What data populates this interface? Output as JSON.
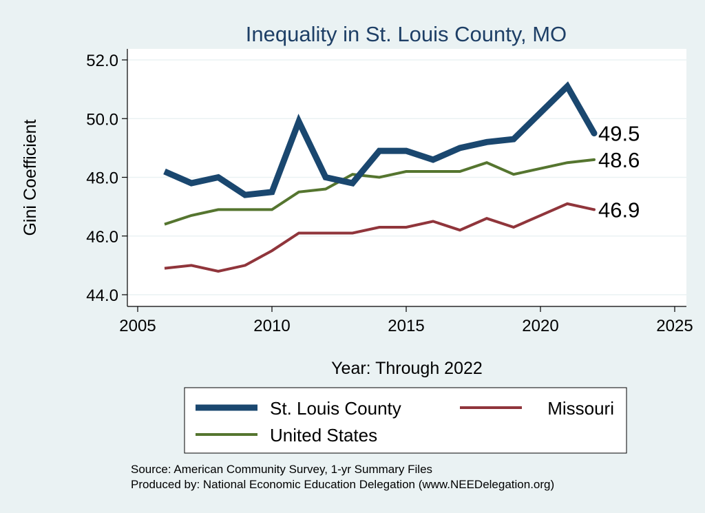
{
  "chart_data": {
    "type": "line",
    "title": "Inequality in St. Louis County, MO",
    "xlabel": "Year: Through 2022",
    "ylabel": "Gini Coefficient",
    "xlim": [
      2005,
      2025
    ],
    "ylim": [
      44.0,
      52.0
    ],
    "x_ticks": [
      "2005",
      "2010",
      "2015",
      "2020",
      "2025"
    ],
    "y_ticks": [
      "44.0",
      "46.0",
      "48.0",
      "50.0",
      "52.0"
    ],
    "grid": true,
    "legend_position": "bottom",
    "x": [
      2006,
      2007,
      2008,
      2009,
      2010,
      2011,
      2012,
      2013,
      2014,
      2015,
      2016,
      2017,
      2018,
      2019,
      2020,
      2021,
      2022
    ],
    "series": [
      {
        "name": "St. Louis County",
        "color": "#1a476f",
        "values": [
          48.2,
          47.8,
          48.0,
          47.4,
          47.5,
          49.9,
          48.0,
          47.8,
          48.9,
          48.9,
          48.6,
          49.0,
          49.2,
          49.3,
          50.2,
          51.1,
          49.5
        ],
        "end_label": "49.5"
      },
      {
        "name": "Missouri",
        "color": "#90353b",
        "values": [
          44.9,
          45.0,
          44.8,
          45.0,
          45.5,
          46.1,
          46.1,
          46.1,
          46.3,
          46.3,
          46.5,
          46.2,
          46.6,
          46.3,
          46.7,
          47.1,
          46.9
        ],
        "end_label": "46.9"
      },
      {
        "name": "United States",
        "color": "#55752f",
        "values": [
          46.4,
          46.7,
          46.9,
          46.9,
          46.9,
          47.5,
          47.6,
          48.1,
          48.0,
          48.2,
          48.2,
          48.2,
          48.5,
          48.1,
          48.3,
          48.5,
          48.6
        ],
        "end_label": "48.6"
      }
    ]
  },
  "legend": {
    "items": [
      "St. Louis County",
      "Missouri",
      "United States"
    ]
  },
  "source": {
    "line1": "Source: American Community Survey, 1-yr Summary Files",
    "line2": "Produced by: National Economic Education Delegation (www.NEEDelegation.org)"
  }
}
